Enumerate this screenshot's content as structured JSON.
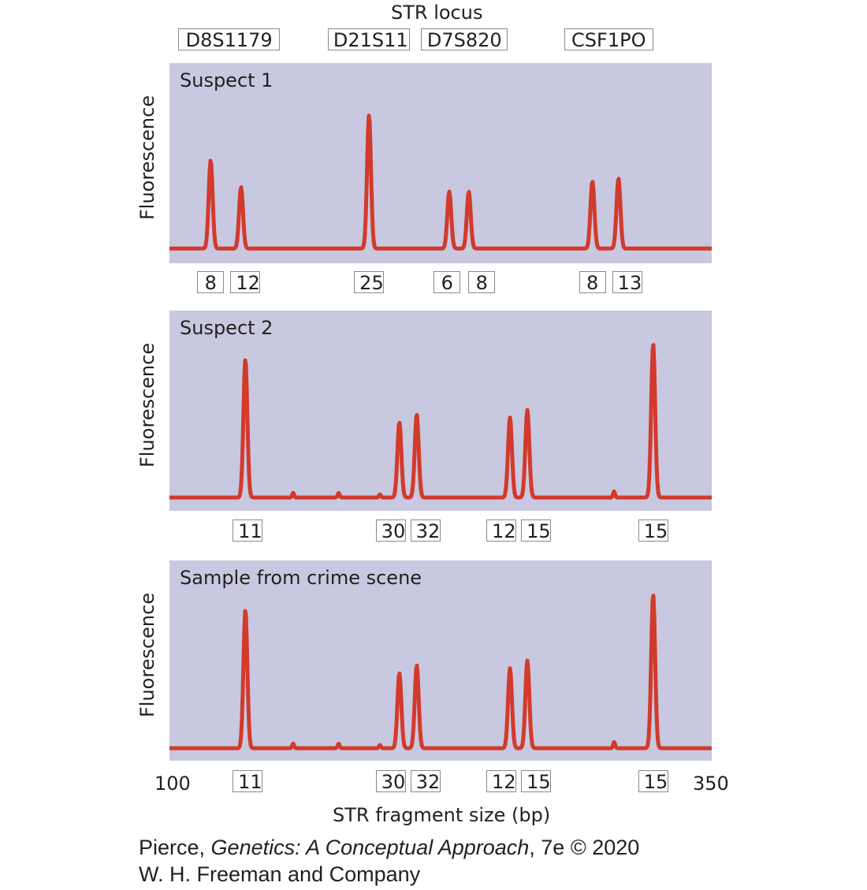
{
  "header": {
    "locus_title": "STR locus"
  },
  "chart_data": {
    "type": "line",
    "xlabel": "STR fragment size (bp)",
    "ylabel": "Fluorescence",
    "xlim": [
      100,
      350
    ],
    "x_tick_labels": [
      "100",
      "350"
    ],
    "grid": false,
    "loci": [
      {
        "name": "D8S1179",
        "x_range": [
          104,
          151
        ]
      },
      {
        "name": "D21S11",
        "x_range": [
          173,
          211
        ]
      },
      {
        "name": "D7S820",
        "x_range": [
          216,
          256
        ]
      },
      {
        "name": "CSF1PO",
        "x_range": [
          282,
          323
        ]
      }
    ],
    "panels": [
      {
        "title": "Suspect 1",
        "baseline": 0.03,
        "peaks": [
          {
            "x": 119,
            "height": 0.59,
            "allele": "8"
          },
          {
            "x": 133,
            "height": 0.41,
            "allele": "12"
          },
          {
            "x": 192,
            "height": 0.89,
            "allele": "25"
          },
          {
            "x": 229,
            "height": 0.38,
            "allele": "6"
          },
          {
            "x": 238,
            "height": 0.38,
            "allele": "8"
          },
          {
            "x": 295,
            "height": 0.45,
            "allele": "8"
          },
          {
            "x": 307,
            "height": 0.47,
            "allele": "13"
          }
        ],
        "allele_labels": [
          {
            "x": 119,
            "label": "8"
          },
          {
            "x": 135,
            "label": "12"
          },
          {
            "x": 192,
            "label": "25"
          },
          {
            "x": 228,
            "label": "6"
          },
          {
            "x": 244,
            "label": "8"
          },
          {
            "x": 295,
            "label": "8"
          },
          {
            "x": 311,
            "label": "13"
          }
        ]
      },
      {
        "title": "Suspect 2",
        "baseline": 0.02,
        "peaks": [
          {
            "x": 135,
            "height": 0.9
          },
          {
            "x": 157,
            "height": 0.03
          },
          {
            "x": 178,
            "height": 0.03
          },
          {
            "x": 197,
            "height": 0.02
          },
          {
            "x": 206,
            "height": 0.49
          },
          {
            "x": 214,
            "height": 0.54
          },
          {
            "x": 257,
            "height": 0.52
          },
          {
            "x": 265,
            "height": 0.57
          },
          {
            "x": 305,
            "height": 0.04
          },
          {
            "x": 323,
            "height": 1.0
          }
        ],
        "allele_labels": [
          {
            "x": 136,
            "label": "11"
          },
          {
            "x": 202,
            "label": "30"
          },
          {
            "x": 218,
            "label": "32"
          },
          {
            "x": 253,
            "label": "12"
          },
          {
            "x": 269,
            "label": "15"
          },
          {
            "x": 323,
            "label": "15"
          }
        ]
      },
      {
        "title": "Sample from crime scene",
        "baseline": 0.02,
        "peaks": [
          {
            "x": 135,
            "height": 0.9
          },
          {
            "x": 157,
            "height": 0.03
          },
          {
            "x": 178,
            "height": 0.03
          },
          {
            "x": 197,
            "height": 0.02
          },
          {
            "x": 206,
            "height": 0.49
          },
          {
            "x": 214,
            "height": 0.54
          },
          {
            "x": 257,
            "height": 0.52
          },
          {
            "x": 265,
            "height": 0.57
          },
          {
            "x": 305,
            "height": 0.04
          },
          {
            "x": 323,
            "height": 1.0
          }
        ],
        "allele_labels": [
          {
            "x": 136,
            "label": "11"
          },
          {
            "x": 202,
            "label": "30"
          },
          {
            "x": 218,
            "label": "32"
          },
          {
            "x": 253,
            "label": "12"
          },
          {
            "x": 269,
            "label": "15"
          },
          {
            "x": 323,
            "label": "15"
          }
        ]
      }
    ]
  },
  "credit": {
    "line1_prefix": "Pierce, ",
    "line1_title": "Genetics: A Conceptual Approach",
    "line1_suffix": ", 7e © 2020",
    "line2": "W. H. Freeman and Company"
  },
  "colors": {
    "trace": "#d23a2c",
    "panel": "#c8c8e0",
    "box_border": "#8a8a8a"
  }
}
